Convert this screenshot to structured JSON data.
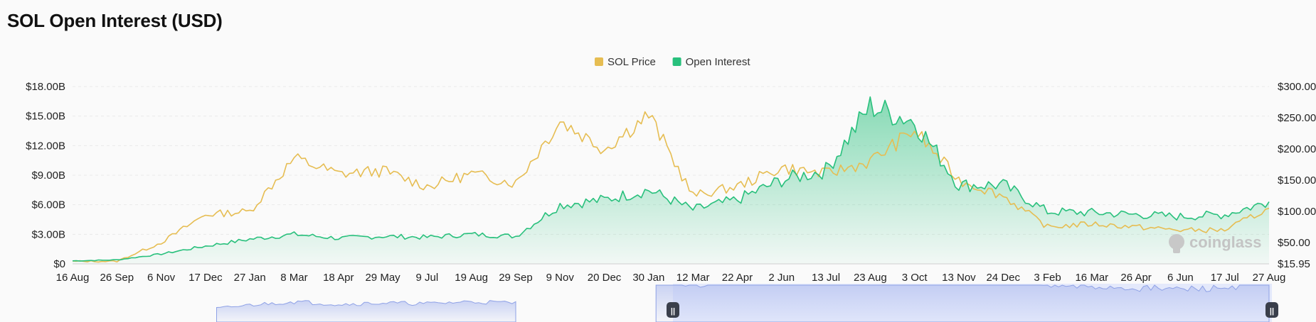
{
  "title": "SOL Open Interest (USD)",
  "watermark": "coinglass",
  "colors": {
    "price": "#e6bd52",
    "oi": "#28c07c",
    "oi_fill_top": "#28c07c",
    "navigator_fill": "#e4e9fb",
    "navigator_line": "#8ea1e6"
  },
  "chart_data": {
    "type": "line",
    "legend": [
      {
        "name": "SOL Price",
        "color": "#e6bd52"
      },
      {
        "name": "Open Interest",
        "color": "#28c07c"
      }
    ],
    "legend_position": "top-center",
    "x_ticks": [
      "16 Aug",
      "26 Sep",
      "6 Nov",
      "17 Dec",
      "27 Jan",
      "8 Mar",
      "18 Apr",
      "29 May",
      "9 Jul",
      "19 Aug",
      "29 Sep",
      "9 Nov",
      "20 Dec",
      "30 Jan",
      "12 Mar",
      "22 Apr",
      "2 Jun",
      "13 Jul",
      "23 Aug",
      "3 Oct",
      "13 Nov",
      "24 Dec",
      "3 Feb",
      "16 Mar",
      "26 Apr",
      "6 Jun",
      "17 Jul",
      "27 Aug"
    ],
    "y_left_ticks": [
      "$0",
      "$3.00B",
      "$6.00B",
      "$9.00B",
      "$12.00B",
      "$15.00B",
      "$18.00B"
    ],
    "y_left_range": [
      0,
      18
    ],
    "y_right_ticks": [
      "$15.95",
      "$50.00",
      "$100.00",
      "$150.00",
      "$200.00",
      "$250.00",
      "$300.00"
    ],
    "y_right_range": [
      15.95,
      300
    ],
    "grid": true,
    "series": [
      {
        "name": "Open Interest",
        "axis": "left",
        "unit": "$B",
        "x_index": [
          0,
          1,
          2,
          3,
          4,
          5,
          6,
          7,
          8,
          9,
          10,
          11,
          12,
          13,
          14,
          15,
          16,
          17,
          18,
          19,
          20,
          21,
          22,
          23,
          24,
          25,
          26,
          27
        ],
        "values": [
          0.3,
          0.4,
          1.0,
          1.8,
          2.5,
          3.0,
          2.6,
          2.8,
          2.7,
          3.0,
          2.8,
          6.0,
          6.5,
          7.5,
          5.5,
          6.5,
          8.5,
          9.5,
          16.0,
          14.5,
          8.0,
          8.0,
          5.3,
          5.2,
          5.0,
          4.8,
          5.0,
          6.3
        ]
      },
      {
        "name": "SOL Price",
        "axis": "right",
        "unit": "$",
        "x_index": [
          0,
          1,
          2,
          3,
          4,
          5,
          6,
          7,
          8,
          9,
          10,
          11,
          12,
          13,
          14,
          15,
          16,
          17,
          18,
          19,
          20,
          21,
          22,
          23,
          24,
          25,
          26,
          27
        ],
        "values": [
          20,
          20,
          50,
          95,
          100,
          185,
          160,
          165,
          140,
          160,
          145,
          245,
          200,
          255,
          125,
          140,
          170,
          160,
          180,
          230,
          150,
          125,
          75,
          80,
          75,
          70,
          70,
          105
        ]
      }
    ],
    "navigator": {
      "left_handle": "||",
      "right_handle": "||"
    }
  }
}
